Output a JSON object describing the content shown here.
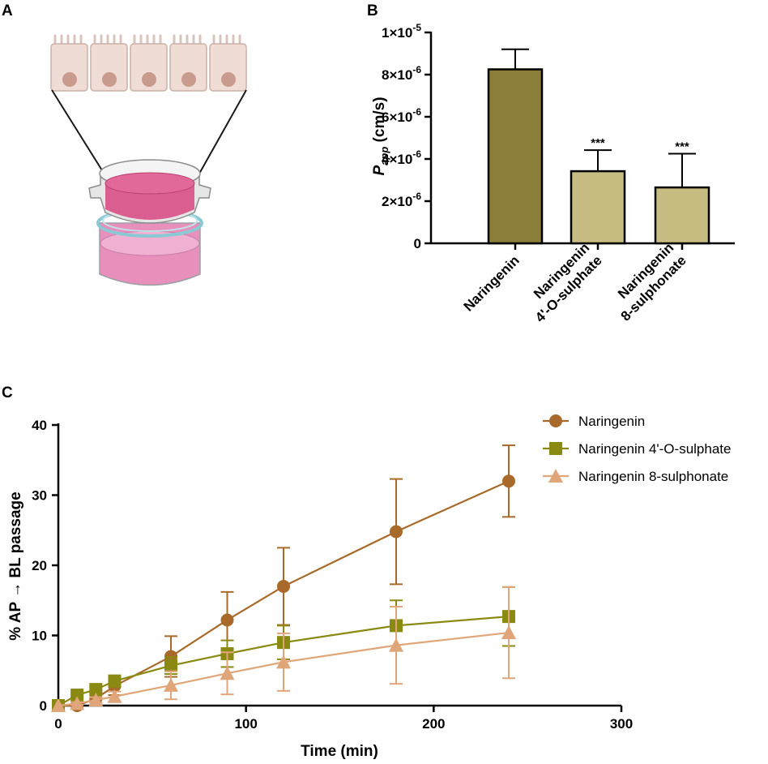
{
  "panels": {
    "a": "A",
    "b": "B",
    "c": "C"
  },
  "chart_data": [
    {
      "panel": "B",
      "type": "bar",
      "ylabel_main": "P",
      "ylabel_sub": "app",
      "ylabel_unit": " (cm/s)",
      "yticks": [
        {
          "value": 0,
          "base": "0",
          "exp": ""
        },
        {
          "value": 2e-06,
          "base": "2×10",
          "exp": "-6"
        },
        {
          "value": 4e-06,
          "base": "4×10",
          "exp": "-6"
        },
        {
          "value": 6e-06,
          "base": "6×10",
          "exp": "-6"
        },
        {
          "value": 8e-06,
          "base": "8×10",
          "exp": "-6"
        },
        {
          "value": 1e-05,
          "base": "1×10",
          "exp": "-5"
        }
      ],
      "ylim": [
        0,
        1e-05
      ],
      "bars": [
        {
          "label_lines": [
            "Naringenin"
          ],
          "value": 8.25e-06,
          "error": 9.5e-07,
          "significance": "",
          "color": "#8b7d3a"
        },
        {
          "label_lines": [
            "Naringenin",
            "4'-O-sulphate"
          ],
          "value": 3.42e-06,
          "error": 1e-06,
          "significance": "***",
          "color": "#c7bd83"
        },
        {
          "label_lines": [
            "Naringenin",
            "8-sulphonate"
          ],
          "value": 2.65e-06,
          "error": 1.6e-06,
          "significance": "***",
          "color": "#c7bd83"
        }
      ]
    },
    {
      "panel": "C",
      "type": "line",
      "xlabel": "Time (min)",
      "ylabel": "% AP → BL passage",
      "xlim": [
        0,
        300
      ],
      "ylim": [
        0,
        40
      ],
      "xticks": [
        0,
        100,
        200,
        300
      ],
      "yticks": [
        0,
        10,
        20,
        30,
        40
      ],
      "series": [
        {
          "name": "Naringenin",
          "color": "#a86a2a",
          "marker": "circle",
          "x": [
            0,
            10,
            20,
            30,
            60,
            90,
            120,
            180,
            240
          ],
          "y": [
            0,
            0,
            1,
            2.8,
            7,
            12.2,
            17,
            24.8,
            32
          ],
          "err": [
            0,
            0.2,
            0.6,
            1.3,
            2.9,
            4.0,
            5.5,
            7.5,
            5.1
          ]
        },
        {
          "name": "Naringenin 4'-O-sulphate",
          "color": "#8a8a12",
          "marker": "square",
          "x": [
            0,
            10,
            20,
            30,
            60,
            90,
            120,
            180,
            240
          ],
          "y": [
            0,
            1.5,
            2.3,
            3.5,
            5.7,
            7.4,
            9,
            11.4,
            12.7
          ],
          "err": [
            0,
            0.3,
            0.5,
            0.8,
            1.2,
            1.9,
            2.4,
            3.6,
            4.2
          ]
        },
        {
          "name": "Naringenin 8-sulphonate",
          "color": "#e0a67a",
          "marker": "triangle",
          "x": [
            0,
            10,
            20,
            30,
            60,
            90,
            120,
            180,
            240
          ],
          "y": [
            0,
            0.3,
            0.8,
            1.3,
            2.9,
            4.6,
            6.2,
            8.6,
            10.4
          ],
          "err": [
            0,
            0.2,
            0.4,
            0.7,
            2.0,
            3.0,
            4.1,
            5.5,
            6.5
          ]
        }
      ]
    }
  ]
}
